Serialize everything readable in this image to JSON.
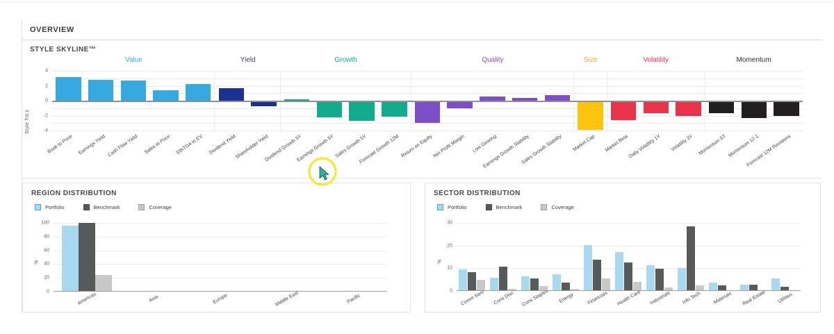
{
  "overview": {
    "title": "OVERVIEW"
  },
  "chart_data": [
    {
      "type": "bar",
      "title": "STYLE SKYLINE™",
      "ylabel": "Style Tilt ™",
      "ylim": [
        -4,
        4
      ],
      "yticks": [
        4,
        2,
        0,
        -2,
        -4
      ],
      "grid": "on",
      "groups": [
        {
          "label": "Value",
          "color": "#36A9E1",
          "header_color": "#36A9E1",
          "bars": [
            {
              "label": "Book to Price",
              "value": 3.2
            },
            {
              "label": "Earnings Yield",
              "value": 2.8
            },
            {
              "label": "Cash Flow Yield",
              "value": 2.7
            },
            {
              "label": "Sales to Price",
              "value": 1.4
            },
            {
              "label": "EBITDA to EV",
              "value": 2.2
            }
          ]
        },
        {
          "label": "Yield",
          "color": "#1B3193",
          "header_color": "#3A4454",
          "bars": [
            {
              "label": "Dividend Yield",
              "value": 1.65
            },
            {
              "label": "Shareholder Yield",
              "value": -0.75
            }
          ]
        },
        {
          "label": "Growth",
          "color": "#12AC8D",
          "header_color": "#12AC8D",
          "bars": [
            {
              "label": "Dividend Growth 5Y",
              "value": 0.2
            },
            {
              "label": "Earnings Growth 5Y",
              "value": -2.2
            },
            {
              "label": "Sales Growth 5Y",
              "value": -2.7
            },
            {
              "label": "Forecast Growth 12M",
              "value": -2.1
            }
          ]
        },
        {
          "label": "Quality",
          "color": "#7C4FC8",
          "header_color": "#7C4FC8",
          "bars": [
            {
              "label": "Return on Equity",
              "value": -3.0
            },
            {
              "label": "Net Profit Margin",
              "value": -1.0
            },
            {
              "label": "Low Gearing",
              "value": 0.6
            },
            {
              "label": "Earnings Growth Stability",
              "value": 0.4
            },
            {
              "label": "Sales Growth Stability",
              "value": 0.7
            }
          ]
        },
        {
          "label": "Size",
          "color": "#FEC40D",
          "header_color": "#F5A93B",
          "bars": [
            {
              "label": "Market Cap",
              "value": -3.9
            }
          ]
        },
        {
          "label": "Volatility",
          "color": "#E9334A",
          "header_color": "#E9334A",
          "bars": [
            {
              "label": "Market Beta",
              "value": -2.6
            },
            {
              "label": "Daily Volatility 1Y",
              "value": -1.7
            },
            {
              "label": "Volatility 3Y",
              "value": -2.0
            }
          ]
        },
        {
          "label": "Momentum",
          "color": "#231F20",
          "header_color": "#2B2B2B",
          "bars": [
            {
              "label": "Momentum ST",
              "value": -1.7
            },
            {
              "label": "Momentum 12-1",
              "value": -2.3
            },
            {
              "label": "Forecast 12M Revisions",
              "value": -2.0
            }
          ]
        }
      ]
    },
    {
      "type": "bar",
      "title": "REGION DISTRIBUTION",
      "ylabel": "%",
      "ylim": [
        0,
        100
      ],
      "yticks": [
        0,
        20,
        40,
        60,
        80,
        100
      ],
      "legend_position": "top",
      "categories": [
        "Americas",
        "Asia",
        "Europe",
        "Middle East",
        "Pacific"
      ],
      "series": [
        {
          "name": "Portfolio",
          "color": "#A9D9F1",
          "border": "#49A5D8",
          "values": [
            96,
            0.3,
            1.2,
            0.3,
            0.3
          ]
        },
        {
          "name": "Benchmark",
          "color": "#58595B",
          "border": "#454648",
          "values": [
            100,
            0.7,
            0.7,
            0.7,
            0.7
          ]
        },
        {
          "name": "Coverage",
          "color": "#C8C8C8",
          "border": "#9F9F9F",
          "values": [
            24.5,
            0.2,
            0.3,
            0.2,
            0.2
          ]
        }
      ]
    },
    {
      "type": "bar",
      "title": "SECTOR DISTRIBUTION",
      "ylabel": "%",
      "ylim": [
        0,
        30
      ],
      "yticks": [
        0,
        10,
        20,
        30
      ],
      "legend_position": "top",
      "categories": [
        "Comm Serv",
        "Cons Disc",
        "Cons Staples",
        "Energy",
        "Financials",
        "Health Care",
        "Industrials",
        "Info Tech",
        "Materials",
        "Real Estate",
        "Utilities"
      ],
      "series": [
        {
          "name": "Portfolio",
          "color": "#A9D9F1",
          "border": "#49A5D8",
          "values": [
            9.4,
            5.7,
            6.5,
            7.2,
            20.1,
            17.0,
            11.4,
            10.0,
            3.6,
            2.8,
            5.5
          ]
        },
        {
          "name": "Benchmark",
          "color": "#58595B",
          "border": "#454648",
          "values": [
            8.3,
            10.8,
            5.5,
            3.6,
            13.7,
            12.7,
            9.8,
            28.5,
            2.6,
            2.7,
            1.9
          ]
        },
        {
          "name": "Coverage",
          "color": "#C8C8C8",
          "border": "#9F9F9F",
          "values": [
            4.8,
            0.8,
            2.1,
            0.8,
            5.5,
            4.0,
            1.4,
            2.4,
            0.2,
            0.2,
            0.2
          ]
        }
      ]
    }
  ]
}
